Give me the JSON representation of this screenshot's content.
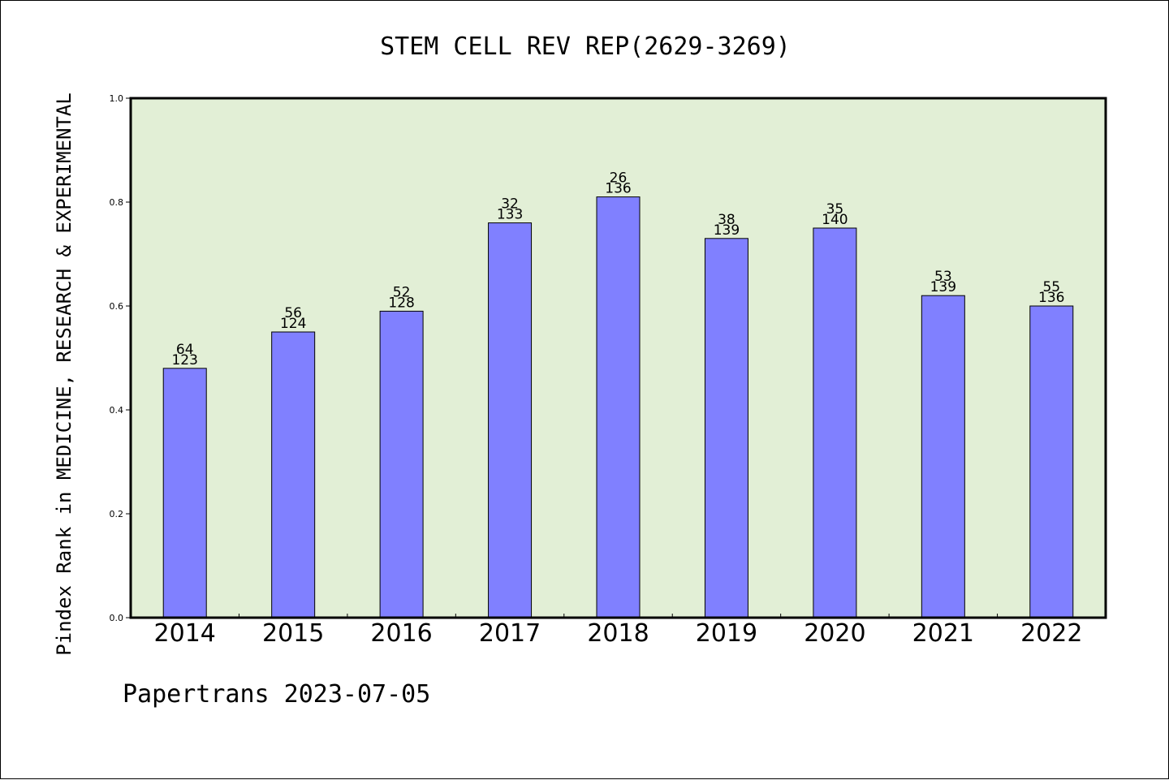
{
  "chart_data": {
    "type": "bar",
    "title": "STEM CELL REV REP(2629-3269)",
    "ylabel": "Pindex Rank in MEDICINE, RESEARCH & EXPERIMENTAL",
    "xlabel": "",
    "footer": "Papertrans 2023-07-05",
    "categories": [
      "2014",
      "2015",
      "2016",
      "2017",
      "2018",
      "2019",
      "2020",
      "2021",
      "2022"
    ],
    "values": [
      0.48,
      0.55,
      0.59,
      0.76,
      0.81,
      0.73,
      0.75,
      0.62,
      0.6
    ],
    "rank_labels": [
      "64",
      "56",
      "52",
      "32",
      "26",
      "38",
      "35",
      "53",
      "55"
    ],
    "total_labels": [
      "123",
      "124",
      "128",
      "133",
      "136",
      "139",
      "140",
      "139",
      "136"
    ],
    "ylim": [
      0.0,
      1.0
    ],
    "yticks": [
      "0.0",
      "0.2",
      "0.4",
      "0.6",
      "0.8",
      "1.0"
    ],
    "grid": false,
    "colors": {
      "plot_background": "#e2efd6",
      "bar_fill": "#8080ff",
      "bar_stroke": "#000000",
      "axis": "#000000"
    }
  }
}
